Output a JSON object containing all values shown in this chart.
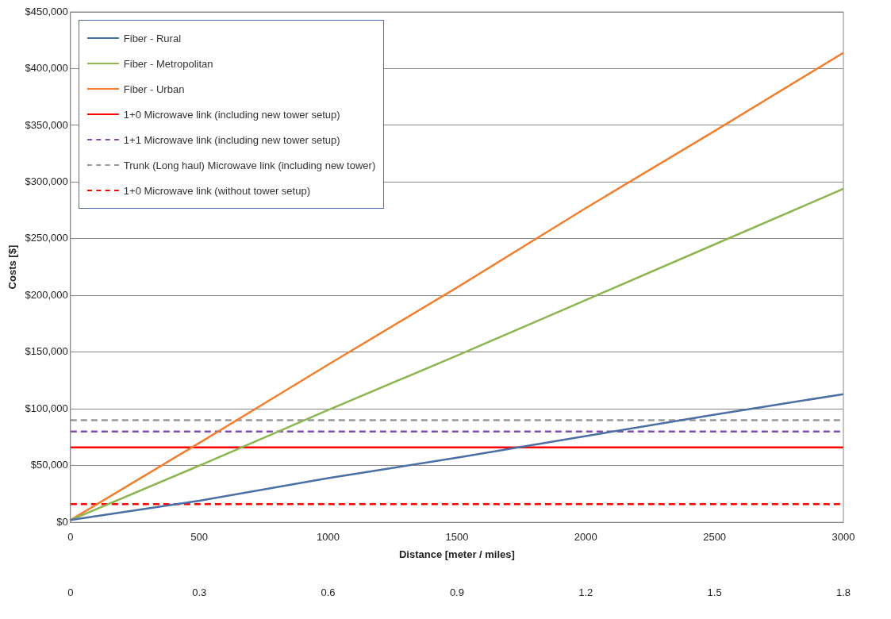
{
  "chart_data": {
    "type": "line",
    "xlabel": "Distance [meter / miles]",
    "ylabel": "Costs [$]",
    "xlim": [
      0,
      3000
    ],
    "xticks": [
      0,
      500,
      1000,
      1500,
      2000,
      2500,
      3000
    ],
    "x2lim": [
      0,
      1.8
    ],
    "x2ticks": [
      0,
      0.3,
      0.6,
      0.9,
      1.2,
      1.5,
      1.8
    ],
    "ylim": [
      0,
      450000
    ],
    "yticks": [
      {
        "value": 0,
        "label": "$0"
      },
      {
        "value": 50000,
        "label": "$50,000"
      },
      {
        "value": 100000,
        "label": "$100,000"
      },
      {
        "value": 150000,
        "label": "$150,000"
      },
      {
        "value": 200000,
        "label": "$200,000"
      },
      {
        "value": 250000,
        "label": "$250,000"
      },
      {
        "value": 300000,
        "label": "$300,000"
      },
      {
        "value": 350000,
        "label": "$350,000"
      },
      {
        "value": 400000,
        "label": "$400,000"
      },
      {
        "value": 450000,
        "label": "$450,000"
      }
    ],
    "grid": "y",
    "legend": "top left",
    "marker": "none",
    "series": [
      {
        "name": "Fiber - Rural",
        "color": "#4a6fa5",
        "x": [
          0,
          500,
          1000,
          1500,
          2000,
          2500,
          3000
        ],
        "values": [
          2000,
          19000,
          39000,
          57000,
          76000,
          95000,
          113000
        ]
      },
      {
        "name": "Fiber - Metropolitan",
        "color": "#8db651",
        "x": [
          0,
          500,
          1000,
          1500,
          2000,
          2500,
          3000
        ],
        "values": [
          2000,
          50000,
          99000,
          147000,
          196000,
          245000,
          294000
        ]
      },
      {
        "name": "Fiber - Urban",
        "color": "#f08030",
        "x": [
          0,
          500,
          1000,
          1500,
          2000,
          2500,
          3000
        ],
        "values": [
          2000,
          70000,
          139000,
          207000,
          277000,
          345000,
          414000
        ]
      },
      {
        "name": "1+0 Microwave link (including new tower setup)",
        "color": "#ff0000",
        "x": [
          0,
          3000
        ],
        "values": [
          66000,
          66000
        ],
        "line_style": "solid"
      },
      {
        "name": "1+1 Microwave link (including new tower setup)",
        "color": "#7f4fb0",
        "x": [
          0,
          3000
        ],
        "values": [
          80000,
          80000
        ],
        "line_style": "dashed"
      },
      {
        "name": "Trunk (Long haul) Microwave link (including new tower)",
        "color": "#999999",
        "x": [
          0,
          3000
        ],
        "values": [
          90000,
          90000
        ],
        "line_style": "dashed"
      },
      {
        "name": "1+0 Microwave link (without tower setup)",
        "color": "#ff0000",
        "x": [
          0,
          3000
        ],
        "values": [
          16000,
          16000
        ],
        "line_style": "dashed"
      }
    ]
  }
}
